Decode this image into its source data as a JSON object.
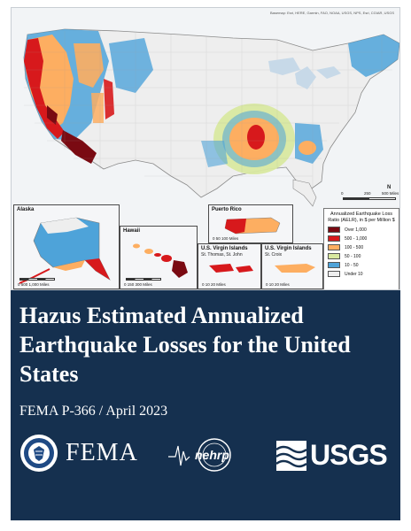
{
  "map": {
    "credit": "Basemap: Esri, HERE, Garmin, FAO, NOAA, USGS, NPS, Esri, CGIAR, USGS",
    "colors": {
      "over_1000": "#7a0a12",
      "500_1000": "#d7191c",
      "100_500": "#fdae61",
      "50_100": "#d8e8a0",
      "10_50": "#4ea3d9",
      "under_10": "#eeeeee"
    },
    "scale": {
      "zero": "0",
      "mid": "250",
      "end": "500 Miles"
    },
    "north": "N",
    "insets": {
      "alaska": {
        "title": "Alaska",
        "scale": "0  500  1,000 Miles"
      },
      "hawaii": {
        "title": "Hawaii",
        "scale": "0     150     300 Miles"
      },
      "puerto_rico": {
        "title": "Puerto Rico",
        "scale": "0  50  100 Miles"
      },
      "usvi_stt": {
        "title": "U.S. Virgin Islands",
        "subtitle": "St. Thomas, St. John",
        "scale": "0   10   20 Miles"
      },
      "usvi_stc": {
        "title": "U.S. Virgin Islands",
        "subtitle": "St. Croix",
        "scale": "0   10   20 Miles"
      }
    },
    "legend": {
      "title": "Annualized Earthquake Loss Ratio (AELR), in $ per Million $",
      "items": [
        {
          "label": "Over 1,000",
          "color": "#7a0a12"
        },
        {
          "label": "500 - 1,000",
          "color": "#d7191c"
        },
        {
          "label": "100 - 500",
          "color": "#fdae61"
        },
        {
          "label": "50 - 100",
          "color": "#d8e8a0"
        },
        {
          "label": "10 - 50",
          "color": "#4ea3d9"
        },
        {
          "label": "Under 10",
          "color": "#eeeeee"
        }
      ]
    }
  },
  "cover": {
    "title": "Hazus Estimated Annualized Earthquake Losses for the United States",
    "subtitle": "FEMA P-366 / April 2023",
    "logos": {
      "fema": "FEMA",
      "nehrp": "nehrp",
      "usgs": "USGS"
    },
    "colors": {
      "panel": "#15304f",
      "text": "#ffffff"
    }
  }
}
